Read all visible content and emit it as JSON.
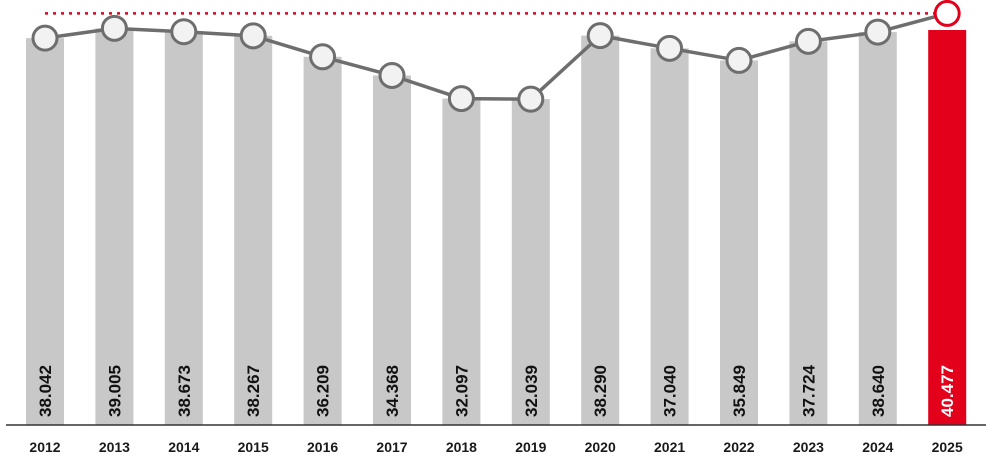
{
  "chart_data": {
    "type": "bar",
    "categories": [
      "2012",
      "2013",
      "2014",
      "2015",
      "2016",
      "2017",
      "2018",
      "2019",
      "2020",
      "2021",
      "2022",
      "2023",
      "2024",
      "2025"
    ],
    "values": [
      38.042,
      39.005,
      38.673,
      38.267,
      36.209,
      34.368,
      32.097,
      32.039,
      38.29,
      37.04,
      35.849,
      37.724,
      38.64,
      40.477
    ],
    "labels": [
      "38.042",
      "39.005",
      "38.673",
      "38.267",
      "36.209",
      "34.368",
      "32.097",
      "32.039",
      "38.290",
      "37.040",
      "35.849",
      "37.724",
      "38.640",
      "40.477"
    ],
    "line_values": [
      38.042,
      39.005,
      38.673,
      38.267,
      36.209,
      34.368,
      32.097,
      32.039,
      38.29,
      37.04,
      35.849,
      37.724,
      38.64,
      40.477
    ],
    "highlight_index": 13,
    "reference_line": 40.477,
    "title": "",
    "xlabel": "",
    "ylabel": "",
    "grid": false,
    "legend": "none",
    "colors": {
      "bar": "#c8c8c8",
      "highlight_bar": "#e3001b",
      "line": "#6e6e6e",
      "marker_fill": "#f2f2f2",
      "marker_stroke": "#6e6e6e",
      "reference_line": "#e3001b",
      "label": "#111111",
      "highlight_label": "#ffffff",
      "axis": "#333333"
    }
  }
}
